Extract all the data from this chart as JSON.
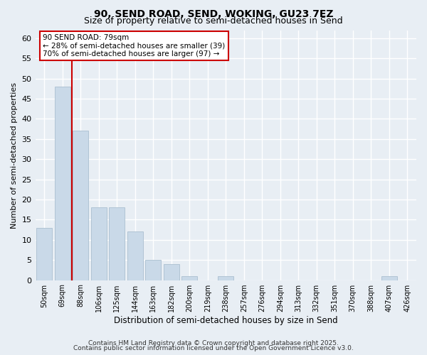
{
  "title1": "90, SEND ROAD, SEND, WOKING, GU23 7EZ",
  "title2": "Size of property relative to semi-detached houses in Send",
  "xlabel": "Distribution of semi-detached houses by size in Send",
  "ylabel": "Number of semi-detached properties",
  "categories": [
    "50sqm",
    "69sqm",
    "88sqm",
    "106sqm",
    "125sqm",
    "144sqm",
    "163sqm",
    "182sqm",
    "200sqm",
    "219sqm",
    "238sqm",
    "257sqm",
    "276sqm",
    "294sqm",
    "313sqm",
    "332sqm",
    "351sqm",
    "370sqm",
    "388sqm",
    "407sqm",
    "426sqm"
  ],
  "values": [
    13,
    48,
    37,
    18,
    18,
    12,
    5,
    4,
    1,
    0,
    1,
    0,
    0,
    0,
    0,
    0,
    0,
    0,
    0,
    1,
    0
  ],
  "bar_color": "#c9d9e8",
  "bar_edge_color": "#b0c4d4",
  "vline_color": "#cc0000",
  "annotation_title": "90 SEND ROAD: 79sqm",
  "annotation_line1": "← 28% of semi-detached houses are smaller (39)",
  "annotation_line2": "70% of semi-detached houses are larger (97) →",
  "annotation_box_color": "#cc0000",
  "ylim": [
    0,
    62
  ],
  "yticks": [
    0,
    5,
    10,
    15,
    20,
    25,
    30,
    35,
    40,
    45,
    50,
    55,
    60
  ],
  "footer1": "Contains HM Land Registry data © Crown copyright and database right 2025.",
  "footer2": "Contains public sector information licensed under the Open Government Licence v3.0.",
  "bg_color": "#e8eef4",
  "grid_color": "#ffffff"
}
